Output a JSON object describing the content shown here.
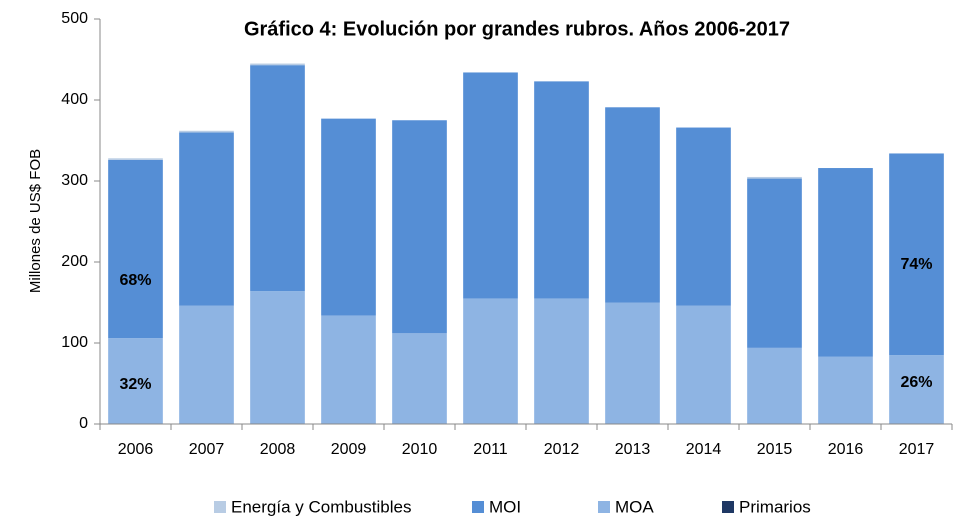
{
  "chart_data": {
    "type": "stacked_bar",
    "title": "Gráfico 4: Evolución por grandes rubros. Años 2006-2017",
    "y_label": "Millones de US$ FOB",
    "categories": [
      "2006",
      "2007",
      "2008",
      "2009",
      "2010",
      "2011",
      "2012",
      "2013",
      "2014",
      "2015",
      "2016",
      "2017"
    ],
    "series": [
      {
        "name": "Primarios",
        "color": "#1f3864",
        "values": [
          0,
          0,
          0,
          0,
          0,
          0,
          0,
          0,
          0,
          0,
          0,
          0
        ]
      },
      {
        "name": "MOA",
        "color": "#8eb4e3",
        "values": [
          106,
          146,
          164,
          134,
          112,
          155,
          155,
          150,
          146,
          94,
          83,
          85
        ]
      },
      {
        "name": "MOI",
        "color": "#558ed5",
        "values": [
          220,
          214,
          279,
          243,
          263,
          279,
          268,
          241,
          220,
          209,
          233,
          249
        ]
      },
      {
        "name": "Energía y Combustibles",
        "color": "#b8cce4",
        "values": [
          2,
          2,
          2,
          0,
          0,
          0,
          0,
          0,
          0,
          2,
          0,
          0
        ]
      }
    ],
    "legend_order": [
      "Energía y Combustibles",
      "MOI",
      "MOA",
      "Primarios"
    ],
    "annotations": [
      "68%",
      "32%",
      "74%",
      "26%"
    ],
    "ylim": [
      0,
      500
    ],
    "yticks": [
      0,
      100,
      200,
      300,
      400,
      500
    ],
    "grid": false
  }
}
